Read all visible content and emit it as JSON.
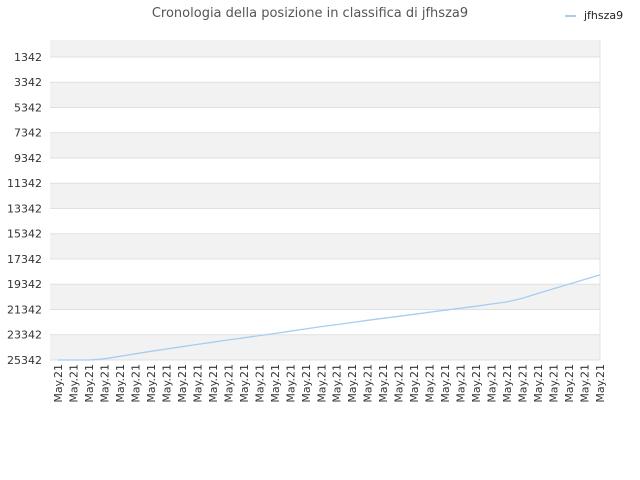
{
  "chart_data": {
    "type": "line",
    "title": "Cronologia della posizione in classifica di jfhsza9",
    "xlabel": "",
    "ylabel": "",
    "y_reversed": true,
    "ylim": [
      25342,
      0
    ],
    "yticks": [
      "1342",
      "3342",
      "5342",
      "7342",
      "9342",
      "11342",
      "13342",
      "15342",
      "17342",
      "19342",
      "21342",
      "23342",
      "25342"
    ],
    "x": [
      "May.21",
      "May.21",
      "May.21",
      "May.21",
      "May.21",
      "May.21",
      "May.21",
      "May.21",
      "May.21",
      "May.21",
      "May.21",
      "May.21",
      "May.21",
      "May.21",
      "May.21",
      "May.21",
      "May.21",
      "May.21",
      "May.21",
      "May.21",
      "May.21",
      "May.21",
      "May.21",
      "May.21",
      "May.21",
      "May.21",
      "May.21",
      "May.21",
      "May.21",
      "May.21",
      "May.21",
      "May.21",
      "May.21",
      "May.21",
      "May.21",
      "May.21"
    ],
    "series": [
      {
        "name": "jfhsza9",
        "color": "#a8cdf0",
        "values": [
          25342,
          25342,
          25342,
          25250,
          25050,
          24850,
          24650,
          24470,
          24290,
          24110,
          23930,
          23750,
          23580,
          23410,
          23240,
          23060,
          22880,
          22700,
          22540,
          22370,
          22200,
          22040,
          21880,
          21720,
          21560,
          21400,
          21240,
          21080,
          20910,
          20740,
          20450,
          20070,
          19700,
          19330,
          18970,
          18600
        ]
      }
    ],
    "grid": true,
    "legend": "top-right",
    "colors": {
      "band": "#f2f2f2",
      "gridline": "#e0e0e0",
      "plot_bg": "#ffffff"
    }
  }
}
